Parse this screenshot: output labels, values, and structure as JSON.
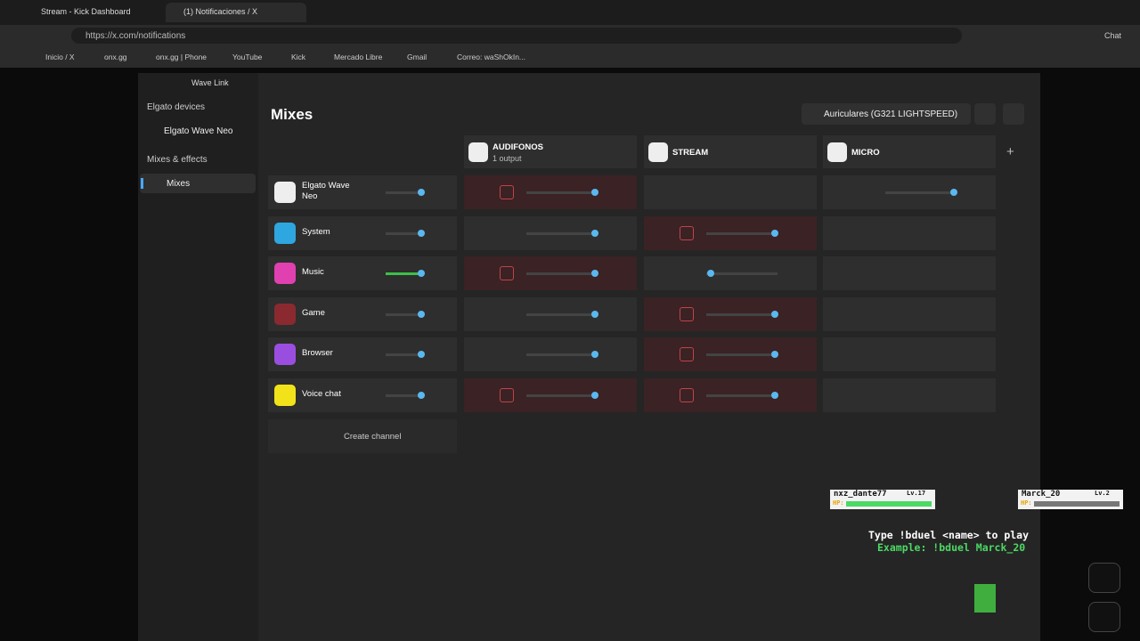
{
  "browser": {
    "tabs": [
      "Stream - Kick Dashboard",
      "(1) Notificaciones / X"
    ],
    "url": "https://x.com/notifications",
    "bookmarks": [
      "Inicio / X",
      "onx.gg",
      "onx.gg | Phone",
      "YouTube",
      "Kick",
      "Mercado Libre",
      "Gmail",
      "Correo: waShOkIn..."
    ],
    "chat": "Chat"
  },
  "app": {
    "title": "Wave Link",
    "sidebar": [
      {
        "title": "Elgato devices",
        "items": [
          "Elgato Wave Neo"
        ]
      },
      {
        "title": "Mixes & effects",
        "items": [
          "Mixes"
        ]
      }
    ],
    "heading": "Mixes",
    "device": "Auriculares (G321 LIGHTSPEED)",
    "mixes": [
      {
        "name": "AUDIFONOS",
        "sub": "1 output"
      },
      {
        "name": "STREAM"
      },
      {
        "name": "MICRO"
      }
    ],
    "channels": [
      "Elgato Wave Neo",
      "System",
      "Music",
      "Game",
      "Browser",
      "Voice chat"
    ],
    "create": "Create channel"
  },
  "overlay": {
    "players": [
      {
        "name": "nxz_dante77",
        "level": "Lv.17",
        "hp": "HP:"
      },
      {
        "name": "Marck_20",
        "level": "Lv.2",
        "hp": "HP:"
      }
    ],
    "lines": [
      "Type !bduel <name> to play",
      "Example: !bduel Marck_20"
    ]
  }
}
